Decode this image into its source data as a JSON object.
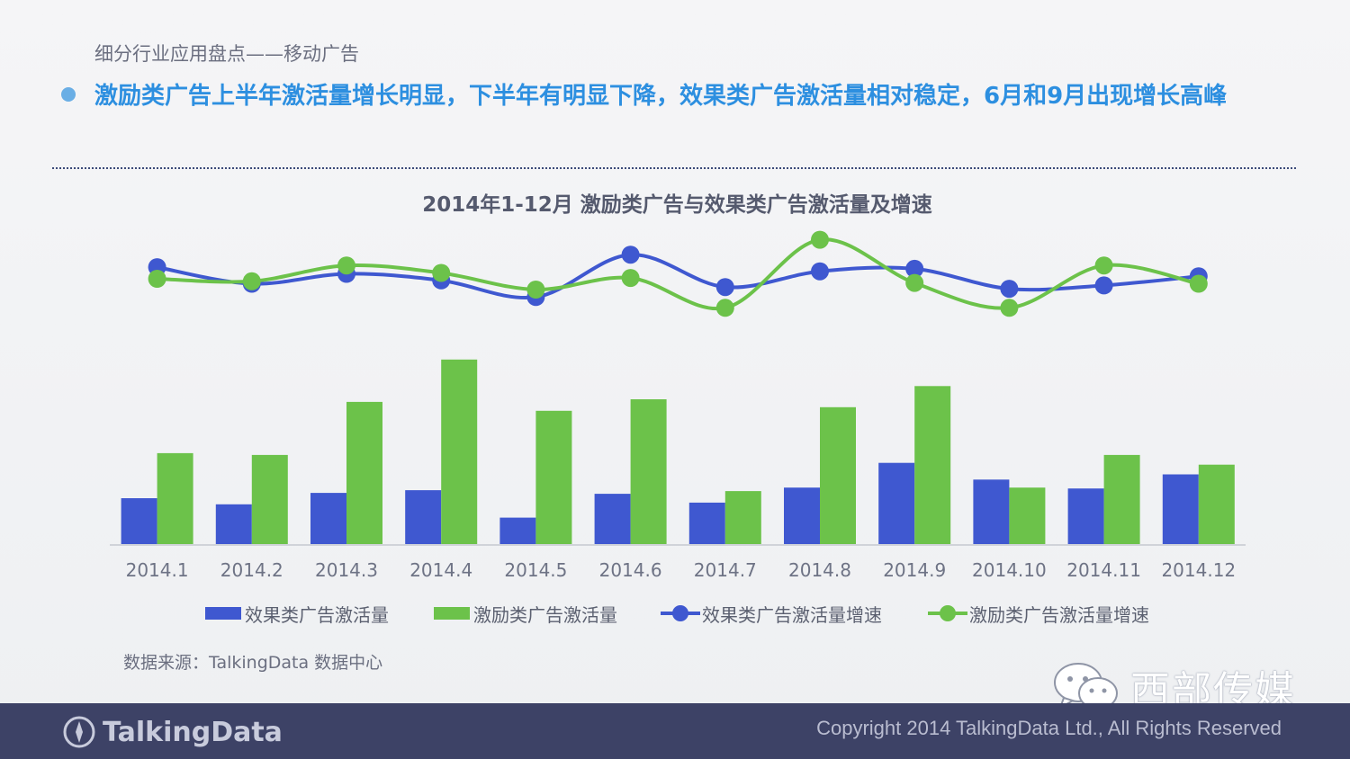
{
  "header": {
    "section": "细分行业应用盘点——移动广告",
    "headline": "激励类广告上半年激活量增长明显，下半年有明显下降，效果类广告激活量相对稳定，6月和9月出现增长高峰"
  },
  "colors": {
    "blue": "#3f58d0",
    "green": "#6cc24a",
    "headline": "#2d8fe0",
    "footer": "#3d4266"
  },
  "chart_data": {
    "type": "bar",
    "title": "2014年1-12月 激励类广告与效果类广告激活量及增速",
    "categories": [
      "2014.1",
      "2014.2",
      "2014.3",
      "2014.4",
      "2014.5",
      "2014.6",
      "2014.7",
      "2014.8",
      "2014.9",
      "2014.10",
      "2014.11",
      "2014.12"
    ],
    "series": [
      {
        "name": "效果类广告激活量",
        "kind": "bar",
        "color": "#3f58d0",
        "values": [
          53,
          46,
          59,
          62,
          31,
          58,
          48,
          65,
          93,
          74,
          64,
          80
        ]
      },
      {
        "name": "激励类广告激活量",
        "kind": "bar",
        "color": "#6cc24a",
        "values": [
          104,
          102,
          162,
          210,
          152,
          165,
          61,
          156,
          180,
          65,
          102,
          91
        ]
      },
      {
        "name": "效果类广告激活量增速",
        "kind": "line",
        "color": "#3f58d0",
        "values": [
          79,
          59,
          71,
          63,
          43,
          94,
          55,
          74,
          77,
          53,
          57,
          68
        ]
      },
      {
        "name": "激励类广告激活量增速",
        "kind": "line",
        "color": "#6cc24a",
        "values": [
          65,
          62,
          81,
          72,
          52,
          66,
          30,
          112,
          60,
          30,
          81,
          59
        ]
      }
    ],
    "bar_ylim": [
      0,
      220
    ],
    "line_ylim": [
      0,
      130
    ],
    "legend_position": "bottom",
    "grid": false
  },
  "legend": [
    {
      "label": "效果类广告激活量",
      "kind": "bar",
      "color": "#3f58d0"
    },
    {
      "label": "激励类广告激活量",
      "kind": "bar",
      "color": "#6cc24a"
    },
    {
      "label": "效果类广告激活量增速",
      "kind": "line",
      "color": "#3f58d0"
    },
    {
      "label": "激励类广告激活量增速",
      "kind": "line",
      "color": "#6cc24a"
    }
  ],
  "source": "数据来源：TalkingData 数据中心",
  "watermark": {
    "text": "西部传媒",
    "icon": "wechat-icon"
  },
  "footer": {
    "brand": "TalkingData",
    "brand_icon": "talkingdata-logo-icon",
    "copyright": "Copyright 2014 TalkingData Ltd., All Rights Reserved"
  }
}
